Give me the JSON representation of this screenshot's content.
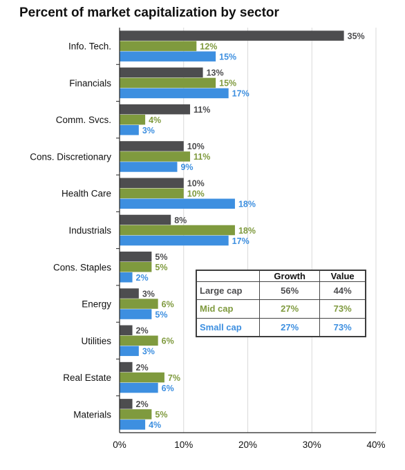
{
  "title": "Percent of market capitalization by sector",
  "colors": {
    "large_cap": "#4d4d4f",
    "mid_cap": "#7f9a3e",
    "small_cap": "#3d8fe0",
    "axis": "#222222",
    "grid": "#d9d9d9"
  },
  "chart_data": {
    "type": "bar",
    "orientation": "horizontal",
    "title": "Percent of market capitalization by sector",
    "categories": [
      "Info. Tech.",
      "Financials",
      "Comm. Svcs.",
      "Cons. Discretionary",
      "Health Care",
      "Industrials",
      "Cons. Staples",
      "Energy",
      "Utilities",
      "Real Estate",
      "Materials"
    ],
    "series": [
      {
        "key": "large_cap",
        "values": [
          35,
          13,
          11,
          10,
          10,
          8,
          5,
          3,
          2,
          2,
          2
        ],
        "value_labels": [
          "35%",
          "13%",
          "11%",
          "10%",
          "10%",
          "8%",
          "5%",
          "3%",
          "2%",
          "2%",
          "2%"
        ]
      },
      {
        "key": "mid_cap",
        "values": [
          12,
          15,
          4,
          11,
          10,
          18,
          5,
          6,
          6,
          7,
          5
        ],
        "value_labels": [
          "12%",
          "15%",
          "4%",
          "11%",
          "10%",
          "18%",
          "5%",
          "6%",
          "6%",
          "7%",
          "5%"
        ]
      },
      {
        "key": "small_cap",
        "values": [
          15,
          17,
          3,
          9,
          18,
          17,
          2,
          5,
          3,
          6,
          4
        ],
        "value_labels": [
          "15%",
          "17%",
          "3%",
          "9%",
          "18%",
          "17%",
          "2%",
          "5%",
          "3%",
          "6%",
          "4%"
        ]
      }
    ],
    "xlim": [
      0,
      40
    ],
    "xticks": [
      0,
      10,
      20,
      30,
      40
    ],
    "xtick_labels": [
      "0%",
      "10%",
      "20%",
      "30%",
      "40%"
    ],
    "grid": true
  },
  "summary_table": {
    "headers": [
      "",
      "Growth",
      "Value"
    ],
    "rows": [
      {
        "key": "large_cap",
        "label": "Large cap",
        "growth": "56%",
        "value": "44%"
      },
      {
        "key": "mid_cap",
        "label": "Mid cap",
        "growth": "27%",
        "value": "73%"
      },
      {
        "key": "small_cap",
        "label": "Small cap",
        "growth": "27%",
        "value": "73%"
      }
    ]
  }
}
